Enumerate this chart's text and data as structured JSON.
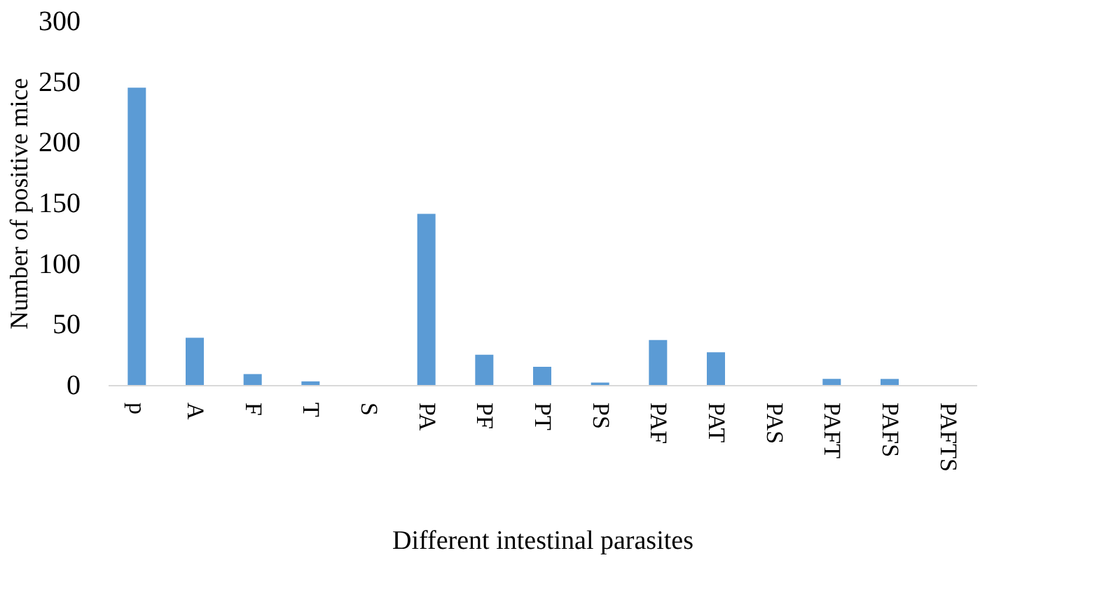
{
  "chart_data": {
    "type": "bar",
    "xlabel": "Different intestinal parasites",
    "ylabel": "Number of positive mice",
    "categories": [
      "p",
      "A",
      "F",
      "T",
      "S",
      "PA",
      "PF",
      "PT",
      "PS",
      "PAF",
      "PAT",
      "PAS",
      "PAFT",
      "PAFS",
      "PAFTS"
    ],
    "values": [
      245,
      39,
      9,
      3,
      0,
      141,
      25,
      15,
      2,
      37,
      27,
      0,
      5,
      5,
      0
    ],
    "color": "#5b9bd5",
    "ylim": [
      0,
      300
    ],
    "yticks": [
      0,
      50,
      100,
      150,
      200,
      250,
      300
    ],
    "grid": false
  }
}
